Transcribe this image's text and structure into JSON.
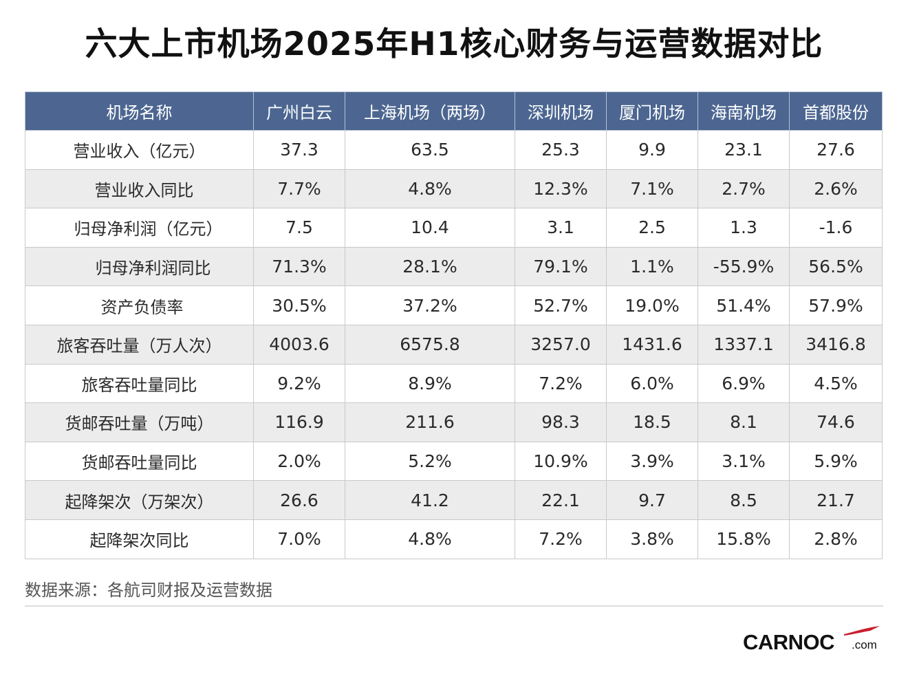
{
  "title": "六大上市机场2025年H1核心财务与运营数据对比",
  "chart_data": {
    "type": "table",
    "title": "六大上市机场2025年H1核心财务与运营数据对比",
    "columns": [
      "机场名称",
      "广州白云",
      "上海机场（两场）",
      "深圳机场",
      "厦门机场",
      "海南机场",
      "首都股份"
    ],
    "rows": [
      {
        "label": "营业收入（亿元）",
        "values": [
          "37.3",
          "63.5",
          "25.3",
          "9.9",
          "23.1",
          "27.6"
        ]
      },
      {
        "label": "营业收入同比",
        "values": [
          "7.7%",
          "4.8%",
          "12.3%",
          "7.1%",
          "2.7%",
          "2.6%"
        ]
      },
      {
        "label": "归母净利润（亿元）",
        "values": [
          "7.5",
          "10.4",
          "3.1",
          "2.5",
          "1.3",
          "-1.6"
        ]
      },
      {
        "label": "归母净利润同比",
        "values": [
          "71.3%",
          "28.1%",
          "79.1%",
          "1.1%",
          "-55.9%",
          "56.5%"
        ]
      },
      {
        "label": "资产负债率",
        "values": [
          "30.5%",
          "37.2%",
          "52.7%",
          "19.0%",
          "51.4%",
          "57.9%"
        ]
      },
      {
        "label": "旅客吞吐量（万人次）",
        "values": [
          "4003.6",
          "6575.8",
          "3257.0",
          "1431.6",
          "1337.1",
          "3416.8"
        ]
      },
      {
        "label": "旅客吞吐量同比",
        "values": [
          "9.2%",
          "8.9%",
          "7.2%",
          "6.0%",
          "6.9%",
          "4.5%"
        ]
      },
      {
        "label": "货邮吞吐量（万吨）",
        "values": [
          "116.9",
          "211.6",
          "98.3",
          "18.5",
          "8.1",
          "74.6"
        ]
      },
      {
        "label": "货邮吞吐量同比",
        "values": [
          "2.0%",
          "5.2%",
          "10.9%",
          "3.9%",
          "3.1%",
          "5.9%"
        ]
      },
      {
        "label": "起降架次（万架次）",
        "values": [
          "26.6",
          "41.2",
          "22.1",
          "9.7",
          "8.5",
          "21.7"
        ]
      },
      {
        "label": "起降架次同比",
        "values": [
          "7.0%",
          "4.8%",
          "7.2%",
          "3.8%",
          "15.8%",
          "2.8%"
        ]
      }
    ]
  },
  "source_note": "数据来源：各航司财报及运营数据",
  "logo": {
    "main": "CARNOC",
    "suffix": ".com"
  },
  "colors": {
    "header_bg": "#4c6691",
    "header_text": "#ffffff",
    "alt_row_bg": "#ececec",
    "logo_accent": "#c8202f"
  }
}
